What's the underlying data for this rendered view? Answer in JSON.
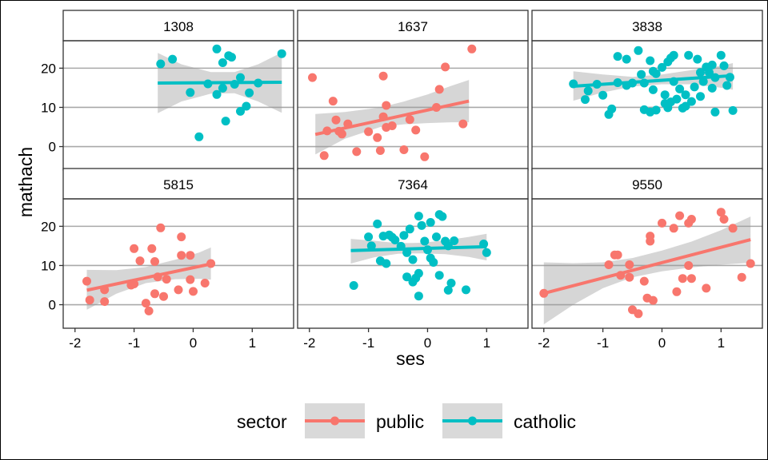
{
  "chart_data": {
    "type": "scatter",
    "facet_by": "school",
    "xlabel": "ses",
    "ylabel": "mathach",
    "xlim": [
      -2.2,
      1.7
    ],
    "ylim": [
      -6,
      27
    ],
    "x_ticks": [
      -2,
      -1,
      0,
      1
    ],
    "y_ticks": [
      0,
      10,
      20
    ],
    "grid": true,
    "legend": {
      "title": "sector",
      "position": "bottom",
      "entries": [
        {
          "name": "public",
          "color": "#F8766D"
        },
        {
          "name": "catholic",
          "color": "#00BFC4"
        }
      ]
    },
    "panels": [
      {
        "title": "1308",
        "sector": "catholic",
        "fit": {
          "x": [
            -0.6,
            1.5
          ],
          "y": [
            16.2,
            16.4
          ]
        },
        "band": [
          [
            -0.6,
            8.5,
            23.9
          ],
          [
            -0.2,
            11.5,
            21.0
          ],
          [
            0.3,
            13.5,
            19.0
          ],
          [
            0.7,
            13.6,
            19.0
          ],
          [
            1.1,
            11.5,
            21.0
          ],
          [
            1.5,
            8.6,
            24.0
          ]
        ],
        "points": [
          [
            -0.55,
            21.1
          ],
          [
            -0.35,
            22.3
          ],
          [
            -0.05,
            13.8
          ],
          [
            0.1,
            2.5
          ],
          [
            0.25,
            16.0
          ],
          [
            0.4,
            24.9
          ],
          [
            0.4,
            13.3
          ],
          [
            0.5,
            21.4
          ],
          [
            0.5,
            14.9
          ],
          [
            0.55,
            6.5
          ],
          [
            0.6,
            23.2
          ],
          [
            0.65,
            22.8
          ],
          [
            0.7,
            15.9
          ],
          [
            0.8,
            17.6
          ],
          [
            0.8,
            9.0
          ],
          [
            0.9,
            10.3
          ],
          [
            0.95,
            13.7
          ],
          [
            1.1,
            16.2
          ],
          [
            1.5,
            23.7
          ]
        ]
      },
      {
        "title": "1637",
        "sector": "public",
        "fit": {
          "x": [
            -1.9,
            0.7
          ],
          "y": [
            3.1,
            11.6
          ]
        },
        "band": [
          [
            -1.9,
            -2.0,
            8.3
          ],
          [
            -1.4,
            2.0,
            8.8
          ],
          [
            -0.8,
            5.0,
            10.0
          ],
          [
            -0.4,
            5.7,
            11.5
          ],
          [
            0.0,
            6.0,
            13.3
          ],
          [
            0.4,
            6.2,
            15.5
          ],
          [
            0.7,
            6.2,
            17.0
          ]
        ],
        "points": [
          [
            -1.95,
            17.6
          ],
          [
            -1.75,
            -2.3
          ],
          [
            -1.7,
            4.0
          ],
          [
            -1.6,
            11.6
          ],
          [
            -1.55,
            6.8
          ],
          [
            -1.5,
            3.9
          ],
          [
            -1.45,
            3.2
          ],
          [
            -1.35,
            5.8
          ],
          [
            -1.2,
            -1.3
          ],
          [
            -1.0,
            3.8
          ],
          [
            -0.85,
            2.3
          ],
          [
            -0.8,
            -1.0
          ],
          [
            -0.75,
            18.0
          ],
          [
            -0.75,
            7.6
          ],
          [
            -0.7,
            4.9
          ],
          [
            -0.7,
            10.5
          ],
          [
            -0.6,
            5.3
          ],
          [
            -0.4,
            -0.8
          ],
          [
            -0.3,
            6.9
          ],
          [
            -0.2,
            4.2
          ],
          [
            -0.05,
            -2.6
          ],
          [
            0.15,
            10.0
          ],
          [
            0.2,
            14.6
          ],
          [
            0.3,
            20.3
          ],
          [
            0.6,
            5.8
          ],
          [
            0.75,
            24.9
          ]
        ]
      },
      {
        "title": "3838",
        "sector": "catholic",
        "fit": {
          "x": [
            -1.5,
            1.2
          ],
          "y": [
            15.4,
            18.1
          ]
        },
        "band": [
          [
            -1.5,
            11.7,
            19.2
          ],
          [
            -1.0,
            13.8,
            18.4
          ],
          [
            -0.5,
            15.3,
            17.8
          ],
          [
            0.0,
            15.9,
            18.4
          ],
          [
            0.5,
            15.9,
            19.5
          ],
          [
            1.0,
            15.0,
            20.6
          ],
          [
            1.2,
            14.5,
            21.3
          ]
        ],
        "points": [
          [
            -1.5,
            16.0
          ],
          [
            -1.3,
            12.0
          ],
          [
            -1.25,
            14.2
          ],
          [
            -1.1,
            15.9
          ],
          [
            -1.0,
            13.1
          ],
          [
            -0.9,
            8.2
          ],
          [
            -0.85,
            9.6
          ],
          [
            -0.75,
            23.0
          ],
          [
            -0.75,
            16.3
          ],
          [
            -0.6,
            22.3
          ],
          [
            -0.6,
            15.6
          ],
          [
            -0.5,
            16.2
          ],
          [
            -0.4,
            24.5
          ],
          [
            -0.35,
            18.4
          ],
          [
            -0.3,
            9.4
          ],
          [
            -0.3,
            16.2
          ],
          [
            -0.2,
            21.9
          ],
          [
            -0.2,
            8.8
          ],
          [
            -0.15,
            19.2
          ],
          [
            -0.15,
            14.5
          ],
          [
            -0.1,
            18.6
          ],
          [
            -0.1,
            9.3
          ],
          [
            0.0,
            20.2
          ],
          [
            0.05,
            13.2
          ],
          [
            0.05,
            11.0
          ],
          [
            0.1,
            21.6
          ],
          [
            0.1,
            9.9
          ],
          [
            0.15,
            22.6
          ],
          [
            0.15,
            11.4
          ],
          [
            0.2,
            23.3
          ],
          [
            0.2,
            16.6
          ],
          [
            0.25,
            12.1
          ],
          [
            0.3,
            14.7
          ],
          [
            0.35,
            9.8
          ],
          [
            0.4,
            13.2
          ],
          [
            0.4,
            10.3
          ],
          [
            0.45,
            23.3
          ],
          [
            0.5,
            11.5
          ],
          [
            0.55,
            15.2
          ],
          [
            0.6,
            22.3
          ],
          [
            0.65,
            18.9
          ],
          [
            0.65,
            12.8
          ],
          [
            0.7,
            16.6
          ],
          [
            0.75,
            20.3
          ],
          [
            0.8,
            18.9
          ],
          [
            0.85,
            14.9
          ],
          [
            0.85,
            20.8
          ],
          [
            0.9,
            17.6
          ],
          [
            0.9,
            8.8
          ],
          [
            1.0,
            23.3
          ],
          [
            1.05,
            20.6
          ],
          [
            1.1,
            15.6
          ],
          [
            1.15,
            17.7
          ],
          [
            1.2,
            9.2
          ]
        ]
      },
      {
        "title": "5815",
        "sector": "public",
        "fit": {
          "x": [
            -1.8,
            0.3
          ],
          "y": [
            3.7,
            10.4
          ]
        },
        "band": [
          [
            -1.8,
            -1.3,
            8.9
          ],
          [
            -1.3,
            2.8,
            8.8
          ],
          [
            -0.8,
            5.5,
            9.6
          ],
          [
            -0.3,
            6.5,
            11.5
          ],
          [
            0.1,
            6.6,
            13.3
          ],
          [
            0.3,
            6.4,
            14.6
          ]
        ],
        "points": [
          [
            -1.8,
            6.0
          ],
          [
            -1.75,
            1.2
          ],
          [
            -1.5,
            3.8
          ],
          [
            -1.5,
            0.8
          ],
          [
            -1.05,
            5.0
          ],
          [
            -1.0,
            5.3
          ],
          [
            -1.0,
            14.3
          ],
          [
            -0.9,
            11.2
          ],
          [
            -0.8,
            0.4
          ],
          [
            -0.75,
            -1.6
          ],
          [
            -0.7,
            14.3
          ],
          [
            -0.65,
            2.8
          ],
          [
            -0.65,
            11.0
          ],
          [
            -0.6,
            7.1
          ],
          [
            -0.55,
            19.6
          ],
          [
            -0.5,
            2.1
          ],
          [
            -0.45,
            6.5
          ],
          [
            -0.25,
            3.8
          ],
          [
            -0.2,
            17.3
          ],
          [
            -0.2,
            12.6
          ],
          [
            -0.05,
            12.6
          ],
          [
            -0.05,
            6.4
          ],
          [
            0.0,
            3.4
          ],
          [
            0.2,
            5.5
          ],
          [
            0.3,
            10.5
          ]
        ]
      },
      {
        "title": "7364",
        "sector": "catholic",
        "fit": {
          "x": [
            -1.3,
            1.0
          ],
          "y": [
            13.8,
            14.8
          ]
        },
        "band": [
          [
            -1.3,
            10.5,
            16.8
          ],
          [
            -0.9,
            12.1,
            16.3
          ],
          [
            -0.5,
            13.0,
            15.7
          ],
          [
            -0.1,
            13.1,
            15.8
          ],
          [
            0.3,
            12.9,
            16.4
          ],
          [
            0.7,
            12.2,
            17.3
          ],
          [
            1.0,
            11.3,
            18.1
          ]
        ],
        "points": [
          [
            -1.25,
            4.9
          ],
          [
            -1.0,
            17.3
          ],
          [
            -0.95,
            15.0
          ],
          [
            -0.85,
            20.6
          ],
          [
            -0.8,
            11.2
          ],
          [
            -0.75,
            17.5
          ],
          [
            -0.7,
            10.5
          ],
          [
            -0.65,
            17.8
          ],
          [
            -0.6,
            17.2
          ],
          [
            -0.55,
            16.5
          ],
          [
            -0.45,
            14.9
          ],
          [
            -0.4,
            17.7
          ],
          [
            -0.35,
            7.1
          ],
          [
            -0.35,
            13.3
          ],
          [
            -0.3,
            19.3
          ],
          [
            -0.25,
            11.5
          ],
          [
            -0.25,
            5.8
          ],
          [
            -0.2,
            6.8
          ],
          [
            -0.15,
            8.0
          ],
          [
            -0.15,
            2.2
          ],
          [
            -0.15,
            22.6
          ],
          [
            -0.1,
            20.2
          ],
          [
            -0.05,
            16.2
          ],
          [
            0.0,
            14.0
          ],
          [
            0.05,
            11.9
          ],
          [
            0.05,
            21.0
          ],
          [
            0.1,
            10.8
          ],
          [
            0.15,
            17.3
          ],
          [
            0.2,
            23.0
          ],
          [
            0.2,
            7.5
          ],
          [
            0.25,
            22.5
          ],
          [
            0.3,
            16.2
          ],
          [
            0.35,
            3.7
          ],
          [
            0.35,
            15.0
          ],
          [
            0.4,
            5.5
          ],
          [
            0.45,
            16.3
          ],
          [
            0.65,
            3.8
          ],
          [
            0.95,
            15.5
          ],
          [
            1.0,
            13.3
          ]
        ]
      },
      {
        "title": "9550",
        "sector": "public",
        "fit": {
          "x": [
            -2.0,
            1.5
          ],
          "y": [
            2.9,
            16.6
          ]
        },
        "band": [
          [
            -2.0,
            -5.0,
            10.8
          ],
          [
            -1.5,
            0.0,
            10.6
          ],
          [
            -1.0,
            4.2,
            10.8
          ],
          [
            -0.5,
            7.0,
            11.9
          ],
          [
            0.0,
            8.5,
            13.8
          ],
          [
            0.5,
            9.5,
            16.1
          ],
          [
            1.0,
            10.2,
            19.0
          ],
          [
            1.5,
            10.7,
            22.5
          ]
        ],
        "points": [
          [
            -2.0,
            2.9
          ],
          [
            -0.9,
            10.2
          ],
          [
            -0.8,
            12.7
          ],
          [
            -0.75,
            12.7
          ],
          [
            -0.7,
            7.5
          ],
          [
            -0.55,
            10.2
          ],
          [
            -0.55,
            7.0
          ],
          [
            -0.5,
            -1.3
          ],
          [
            -0.4,
            -2.3
          ],
          [
            -0.3,
            6.0
          ],
          [
            -0.25,
            1.7
          ],
          [
            -0.2,
            16.2
          ],
          [
            -0.2,
            17.5
          ],
          [
            -0.15,
            1.1
          ],
          [
            0.0,
            20.8
          ],
          [
            0.2,
            19.5
          ],
          [
            0.25,
            3.3
          ],
          [
            0.3,
            22.7
          ],
          [
            0.35,
            6.7
          ],
          [
            0.45,
            10.0
          ],
          [
            0.45,
            20.8
          ],
          [
            0.5,
            21.8
          ],
          [
            0.5,
            6.7
          ],
          [
            0.75,
            4.2
          ],
          [
            1.0,
            23.6
          ],
          [
            1.05,
            21.8
          ],
          [
            1.2,
            19.5
          ],
          [
            1.35,
            7.0
          ],
          [
            1.5,
            10.5
          ]
        ]
      }
    ]
  }
}
